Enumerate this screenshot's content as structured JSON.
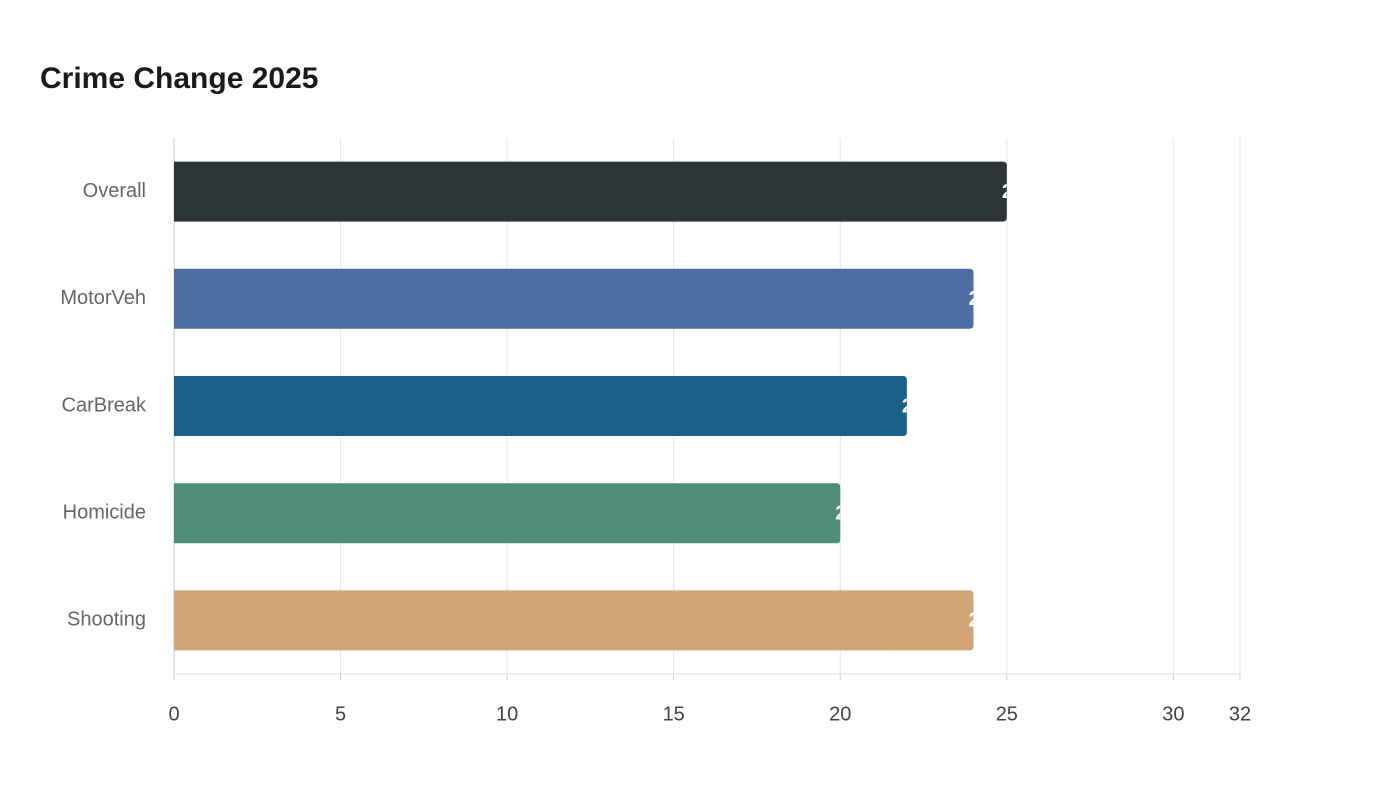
{
  "chart_data": {
    "type": "hbar",
    "title": "Crime Change 2025",
    "categories": [
      "Overall",
      "MotorVeh",
      "CarBreak",
      "Homicide",
      "Shooting"
    ],
    "values": [
      25,
      24,
      22,
      20,
      24
    ],
    "colors": [
      "#2e3538",
      "#4c6ea2",
      "#1a6189",
      "#4f8c7a",
      "#d3a476"
    ],
    "xlim": [
      0,
      32
    ],
    "xticks": [
      0,
      5,
      10,
      15,
      20,
      25,
      30,
      32
    ],
    "grid": true
  }
}
